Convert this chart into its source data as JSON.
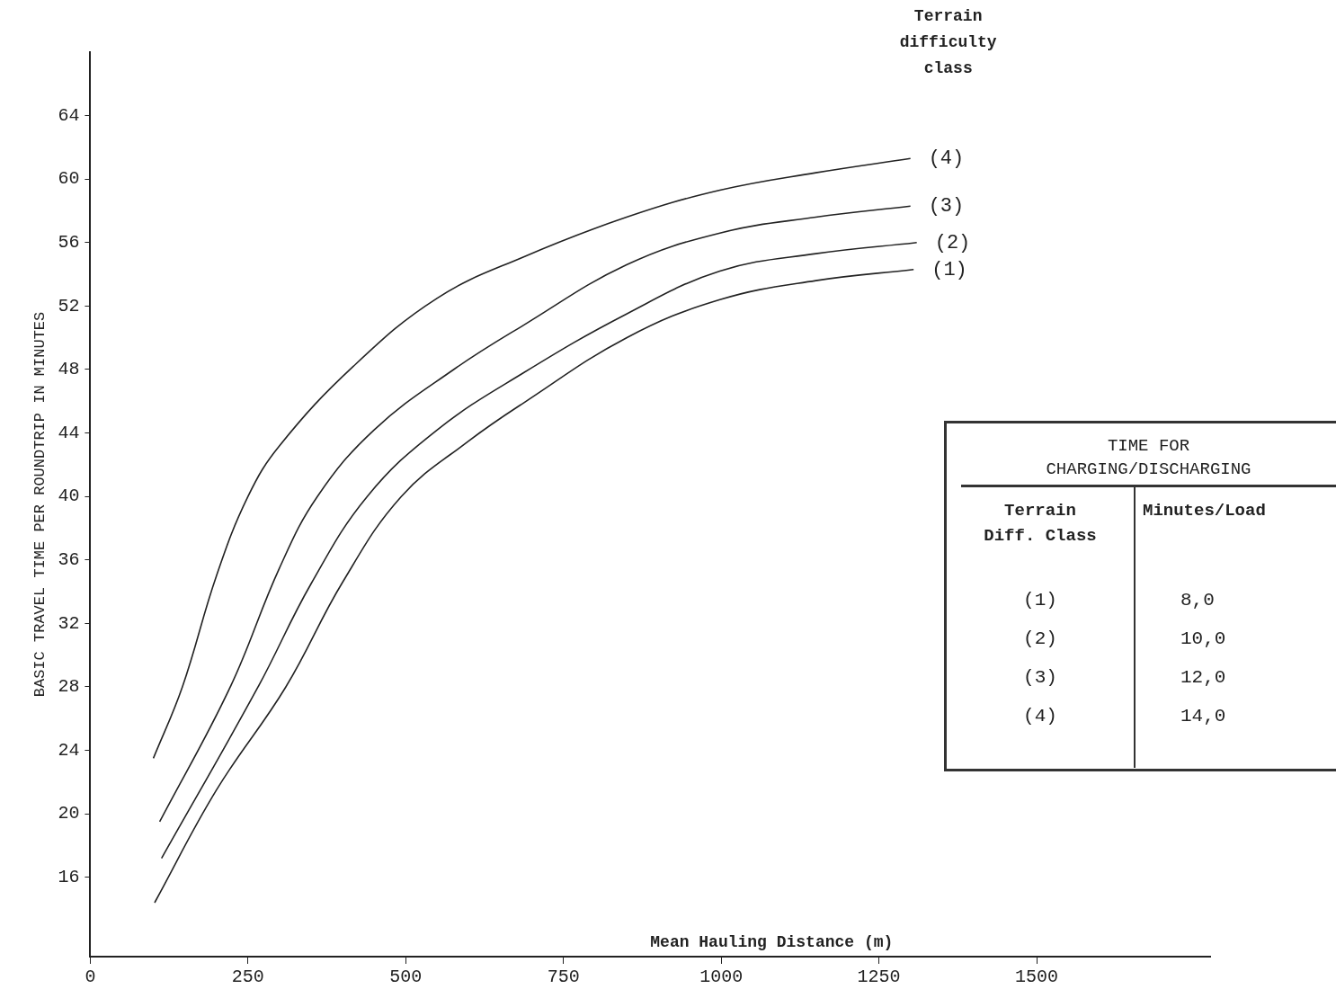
{
  "chart_data": {
    "type": "line",
    "xlabel": "Mean Hauling Distance (m)",
    "ylabel": "BASIC TRAVEL TIME PER ROUNDTRIP IN MINUTES",
    "legend_title": "Terrain difficulty class",
    "xlim": [
      0,
      1775
    ],
    "xticks": [
      0,
      250,
      500,
      750,
      1000,
      1250,
      1500
    ],
    "ylim": [
      11,
      68
    ],
    "yticks": [
      16,
      20,
      24,
      28,
      32,
      36,
      40,
      44,
      48,
      52,
      56,
      60,
      64
    ],
    "grid": false,
    "legend": false,
    "marker": "none",
    "line_style": "solid",
    "series": [
      {
        "name": "(4)",
        "color": "#222222",
        "x": [
          100,
          146,
          200,
          250,
          300,
          417,
          550,
          687,
          850,
          998,
          1150,
          1300
        ],
        "values": [
          23.5,
          28,
          35,
          40,
          43.2,
          48.2,
          52.5,
          55.1,
          57.6,
          59.3,
          60.4,
          61.3
        ]
      },
      {
        "name": "(3)",
        "color": "#222222",
        "x": [
          110,
          222,
          300,
          360,
          450,
          576,
          687,
          850,
          998,
          1150,
          1300
        ],
        "values": [
          19.5,
          28,
          35.5,
          40,
          44.2,
          48,
          50.8,
          54.6,
          56.6,
          57.6,
          58.3
        ]
      },
      {
        "name": "(2)",
        "color": "#222222",
        "x": [
          113,
          266,
          350,
          439,
          550,
          687,
          850,
          998,
          1150,
          1310
        ],
        "values": [
          17.2,
          28,
          34.5,
          40,
          44.2,
          47.8,
          51.5,
          54.2,
          55.3,
          56
        ]
      },
      {
        "name": "(1)",
        "color": "#222222",
        "x": [
          102,
          200,
          310,
          400,
          493,
          600,
          687,
          850,
          998,
          1150,
          1305
        ],
        "values": [
          14.4,
          21.5,
          28,
          34.6,
          40,
          43.5,
          45.9,
          50,
          52.4,
          53.6,
          54.3
        ]
      }
    ],
    "annotations": [
      "TIME FOR CHARGING/DISCHARGING",
      "Terrain Diff. Class",
      "Minutes/Load",
      "(1)",
      "8,0",
      "(2)",
      "10,0",
      "(3)",
      "12,0",
      "(4)",
      "14,0"
    ]
  }
}
